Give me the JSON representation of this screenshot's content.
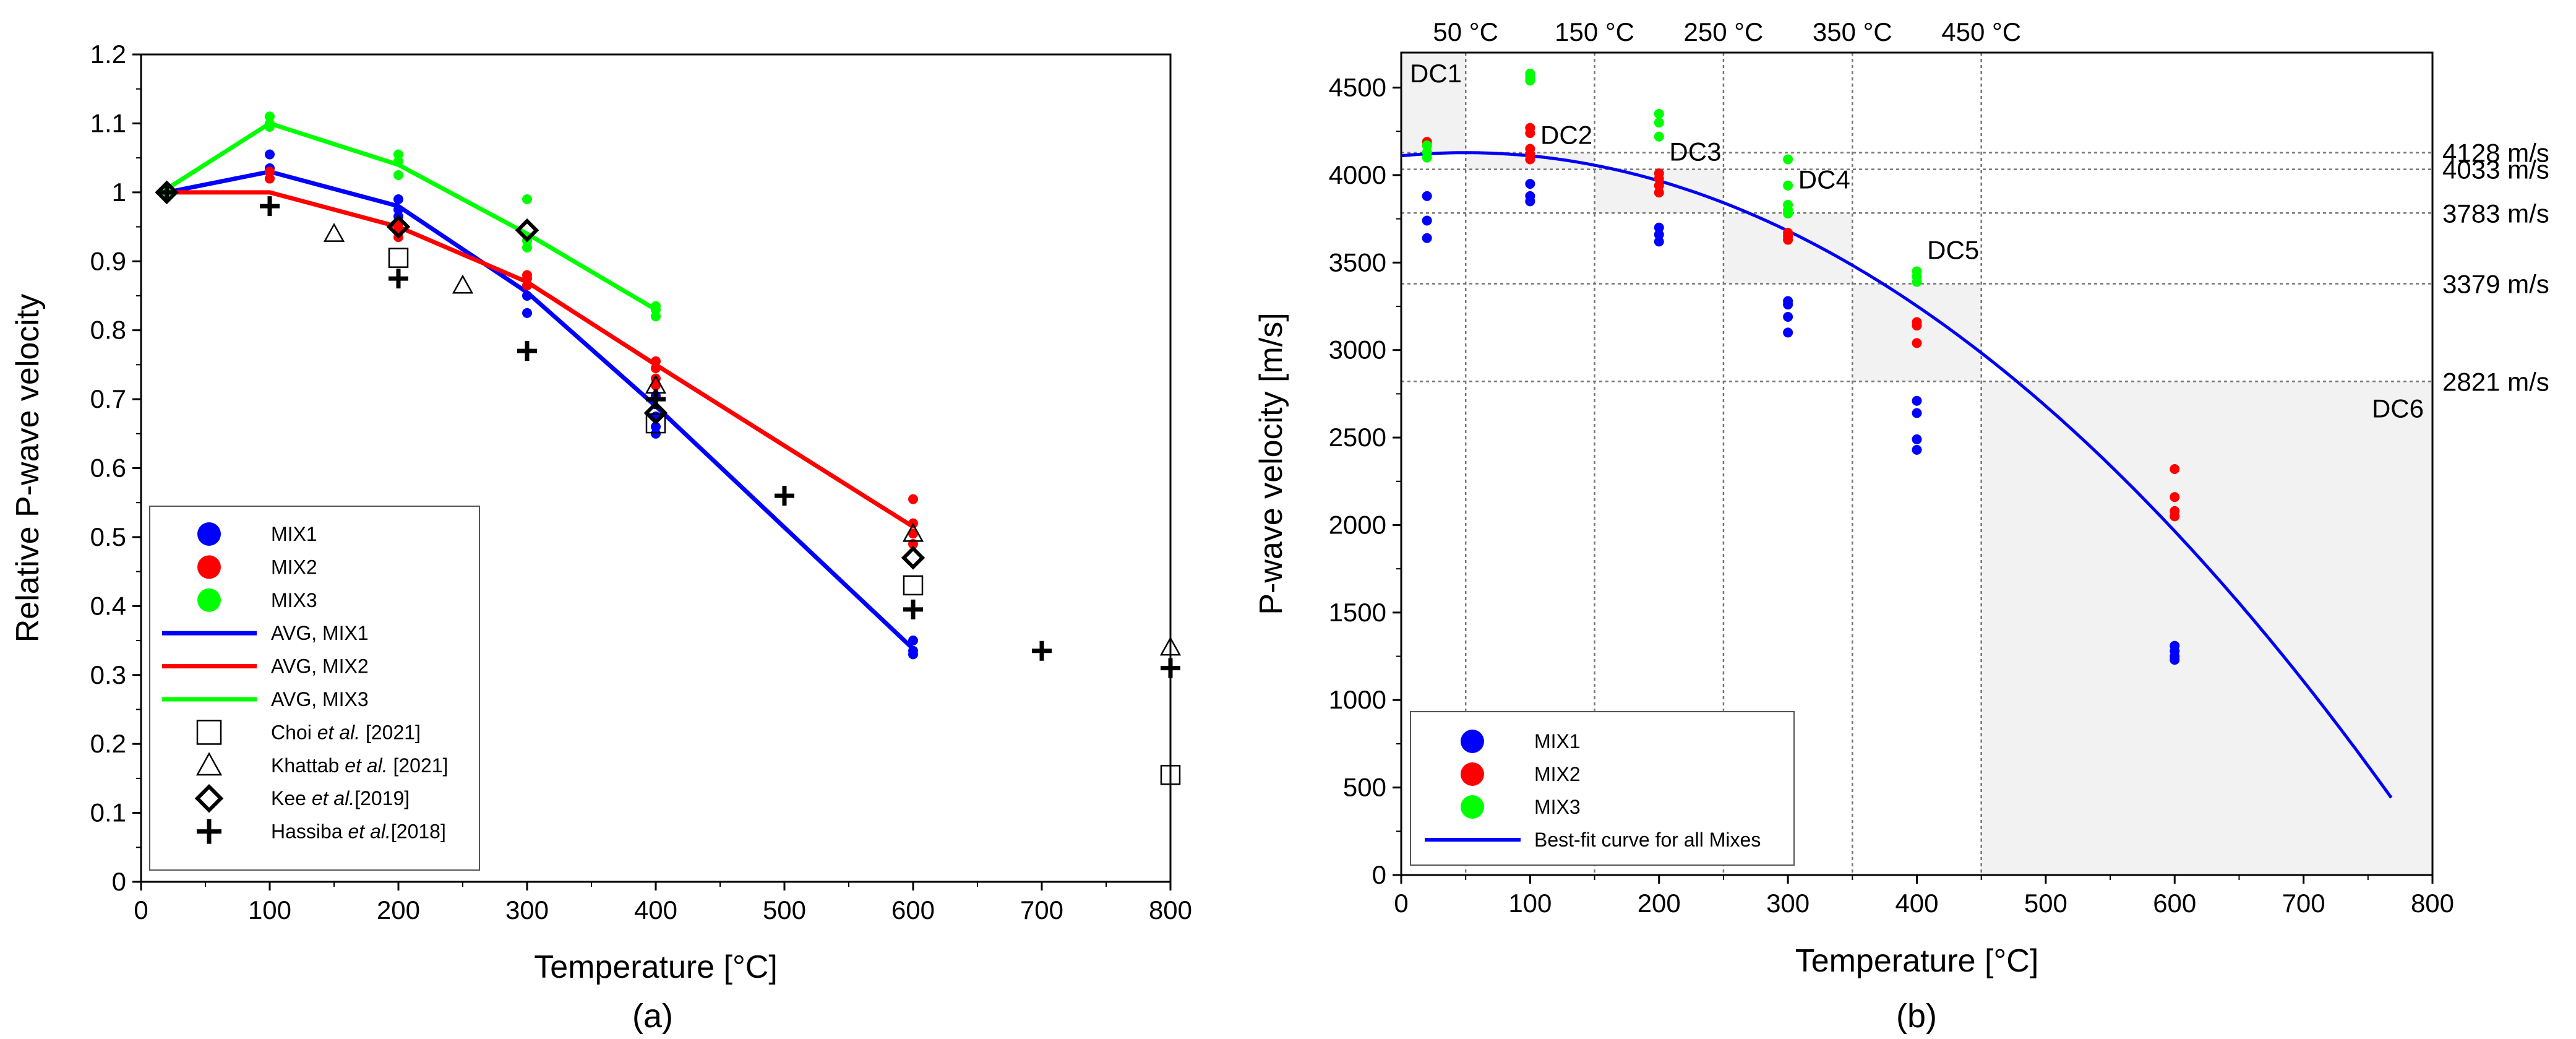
{
  "figure": {
    "caption_a": "(a)",
    "caption_b": "(b)"
  },
  "chart_data": [
    {
      "type": "scatter",
      "title": "",
      "xlabel": "Temperature [°C]",
      "ylabel": "Relative P-wave velocity",
      "xlim": [
        0,
        800
      ],
      "ylim": [
        0,
        1.2
      ],
      "xticks": [
        "0",
        "100",
        "200",
        "300",
        "400",
        "500",
        "600",
        "700",
        "800"
      ],
      "yticks": [
        "0",
        "0.1",
        "0.2",
        "0.3",
        "0.4",
        "0.5",
        "0.6",
        "0.7",
        "0.8",
        "0.9",
        "1",
        "1.1",
        "1.2"
      ],
      "legend_position": "bottom-left",
      "series": [
        {
          "name": "MIX1",
          "kind": "points",
          "color": "#0000ff",
          "points": [
            [
              20,
              1.0
            ],
            [
              100,
              1.055
            ],
            [
              100,
              1.035
            ],
            [
              100,
              1.02
            ],
            [
              200,
              0.99
            ],
            [
              200,
              0.975
            ],
            [
              200,
              0.965
            ],
            [
              200,
              0.955
            ],
            [
              300,
              0.865
            ],
            [
              300,
              0.85
            ],
            [
              300,
              0.825
            ],
            [
              400,
              0.705
            ],
            [
              400,
              0.675
            ],
            [
              400,
              0.66
            ],
            [
              400,
              0.65
            ],
            [
              600,
              0.35
            ],
            [
              600,
              0.335
            ],
            [
              600,
              0.33
            ]
          ]
        },
        {
          "name": "MIX2",
          "kind": "points",
          "color": "#ff0000",
          "points": [
            [
              20,
              1.0
            ],
            [
              100,
              1.03
            ],
            [
              100,
              1.02
            ],
            [
              200,
              0.955
            ],
            [
              200,
              0.945
            ],
            [
              200,
              0.935
            ],
            [
              300,
              0.88
            ],
            [
              300,
              0.875
            ],
            [
              300,
              0.865
            ],
            [
              400,
              0.755
            ],
            [
              400,
              0.745
            ],
            [
              400,
              0.73
            ],
            [
              400,
              0.72
            ],
            [
              600,
              0.555
            ],
            [
              600,
              0.52
            ],
            [
              600,
              0.505
            ],
            [
              600,
              0.49
            ]
          ]
        },
        {
          "name": "MIX3",
          "kind": "points",
          "color": "#00ff00",
          "points": [
            [
              20,
              1.0
            ],
            [
              100,
              1.11
            ],
            [
              100,
              1.1
            ],
            [
              100,
              1.095
            ],
            [
              200,
              1.055
            ],
            [
              200,
              1.045
            ],
            [
              200,
              1.025
            ],
            [
              300,
              0.99
            ],
            [
              300,
              0.93
            ],
            [
              300,
              0.92
            ],
            [
              400,
              0.835
            ],
            [
              400,
              0.83
            ],
            [
              400,
              0.82
            ]
          ]
        },
        {
          "name": "AVG, MIX1",
          "kind": "line",
          "color": "#0000ff",
          "points": [
            [
              20,
              1.0
            ],
            [
              100,
              1.03
            ],
            [
              200,
              0.98
            ],
            [
              300,
              0.855
            ],
            [
              400,
              0.69
            ],
            [
              600,
              0.338
            ]
          ]
        },
        {
          "name": "AVG, MIX2",
          "kind": "line",
          "color": "#ff0000",
          "points": [
            [
              20,
              1.0
            ],
            [
              100,
              1.0
            ],
            [
              200,
              0.95
            ],
            [
              300,
              0.87
            ],
            [
              400,
              0.75
            ],
            [
              600,
              0.515
            ]
          ]
        },
        {
          "name": "AVG, MIX3",
          "kind": "line",
          "color": "#00ff00",
          "points": [
            [
              20,
              1.005
            ],
            [
              100,
              1.1
            ],
            [
              200,
              1.04
            ],
            [
              300,
              0.94
            ],
            [
              400,
              0.83
            ]
          ]
        },
        {
          "name": "Choi et al. [2021]",
          "kind": "square",
          "color": "#000000",
          "points": [
            [
              200,
              0.905
            ],
            [
              400,
              0.665
            ],
            [
              600,
              0.43
            ],
            [
              800,
              0.155
            ]
          ]
        },
        {
          "name": "Khattab et al. [2021]",
          "kind": "triangle",
          "color": "#000000",
          "points": [
            [
              150,
              0.94
            ],
            [
              250,
              0.865
            ],
            [
              400,
              0.72
            ],
            [
              600,
              0.505
            ],
            [
              800,
              0.34
            ]
          ]
        },
        {
          "name": "Kee et al.[2019]",
          "kind": "diamond",
          "color": "#000000",
          "points": [
            [
              20,
              1.0
            ],
            [
              200,
              0.95
            ],
            [
              300,
              0.945
            ],
            [
              400,
              0.68
            ],
            [
              600,
              0.47
            ]
          ]
        },
        {
          "name": "Hassiba et al.[2018]",
          "kind": "plus",
          "color": "#000000",
          "points": [
            [
              20,
              1.0
            ],
            [
              100,
              0.98
            ],
            [
              200,
              0.875
            ],
            [
              300,
              0.77
            ],
            [
              400,
              0.7
            ],
            [
              500,
              0.56
            ],
            [
              600,
              0.395
            ],
            [
              700,
              0.335
            ],
            [
              800,
              0.31
            ]
          ]
        }
      ],
      "legend": [
        {
          "name": "MIX1",
          "text": "MIX1"
        },
        {
          "name": "MIX2",
          "text": "MIX2"
        },
        {
          "name": "MIX3",
          "text": "MIX3"
        },
        {
          "name": "AVG, MIX1",
          "text": "AVG, MIX1"
        },
        {
          "name": "AVG, MIX2",
          "text": "AVG, MIX2"
        },
        {
          "name": "AVG, MIX3",
          "text": "AVG, MIX3"
        },
        {
          "name": "Choi et al. [2021]",
          "pre": "Choi ",
          "em": "et al.",
          "post": " [2021]"
        },
        {
          "name": "Khattab et al. [2021]",
          "pre": "Khattab ",
          "em": "et al.",
          "post": " [2021]"
        },
        {
          "name": "Kee et al.[2019]",
          "pre": "Kee ",
          "em": "et al.",
          "post": "[2019]"
        },
        {
          "name": "Hassiba et al.[2018]",
          "pre": "Hassiba ",
          "em": "et al.",
          "post": "[2018]"
        }
      ]
    },
    {
      "type": "scatter",
      "title": "",
      "xlabel": "Temperature [°C]",
      "ylabel": "P-wave velocity [m/s]",
      "xlim": [
        0,
        800
      ],
      "ylim": [
        0,
        4700
      ],
      "xticks": [
        "0",
        "100",
        "200",
        "300",
        "400",
        "500",
        "600",
        "700",
        "800"
      ],
      "yticks": [
        "0",
        "500",
        "1000",
        "1500",
        "2000",
        "2500",
        "3000",
        "3500",
        "4000",
        "4500"
      ],
      "legend_position": "bottom-left",
      "top_temperature_labels": [
        {
          "x": 50,
          "text": "50 °C"
        },
        {
          "x": 150,
          "text": "150 °C"
        },
        {
          "x": 250,
          "text": "250 °C"
        },
        {
          "x": 350,
          "text": "350 °C"
        },
        {
          "x": 450,
          "text": "450 °C"
        }
      ],
      "velocity_thresholds": [
        {
          "y": 4128,
          "text": "4128 m/s"
        },
        {
          "y": 4033,
          "text": "4033 m/s"
        },
        {
          "y": 3783,
          "text": "3783 m/s"
        },
        {
          "y": 3379,
          "text": "3379 m/s"
        },
        {
          "y": 2821,
          "text": "2821 m/s"
        }
      ],
      "damage_classes": [
        {
          "label": "DC1",
          "x_range": [
            0,
            50
          ],
          "y_range": [
            4128,
            4700
          ]
        },
        {
          "label": "DC2",
          "x_range": [
            50,
            150
          ],
          "y_range": [
            4033,
            4128
          ]
        },
        {
          "label": "DC3",
          "x_range": [
            150,
            250
          ],
          "y_range": [
            3783,
            4033
          ]
        },
        {
          "label": "DC4",
          "x_range": [
            250,
            350
          ],
          "y_range": [
            3379,
            3783
          ]
        },
        {
          "label": "DC5",
          "x_range": [
            350,
            450
          ],
          "y_range": [
            2821,
            3379
          ]
        },
        {
          "label": "DC6",
          "x_range": [
            450,
            800
          ],
          "y_range": [
            0,
            2821
          ]
        }
      ],
      "series": [
        {
          "name": "MIX1",
          "kind": "points",
          "color": "#0000ff",
          "points": [
            [
              20,
              3880
            ],
            [
              20,
              3740
            ],
            [
              20,
              3640
            ],
            [
              100,
              3950
            ],
            [
              100,
              3880
            ],
            [
              100,
              3850
            ],
            [
              200,
              3700
            ],
            [
              200,
              3660
            ],
            [
              200,
              3620
            ],
            [
              300,
              3280
            ],
            [
              300,
              3260
            ],
            [
              300,
              3190
            ],
            [
              300,
              3100
            ],
            [
              400,
              2710
            ],
            [
              400,
              2640
            ],
            [
              400,
              2490
            ],
            [
              400,
              2430
            ],
            [
              600,
              1310
            ],
            [
              600,
              1280
            ],
            [
              600,
              1250
            ],
            [
              600,
              1230
            ]
          ]
        },
        {
          "name": "MIX2",
          "kind": "points",
          "color": "#ff0000",
          "points": [
            [
              20,
              4190
            ],
            [
              20,
              4170
            ],
            [
              100,
              4270
            ],
            [
              100,
              4240
            ],
            [
              100,
              4150
            ],
            [
              100,
              4120
            ],
            [
              100,
              4090
            ],
            [
              200,
              4010
            ],
            [
              200,
              3980
            ],
            [
              200,
              3940
            ],
            [
              200,
              3900
            ],
            [
              300,
              3670
            ],
            [
              300,
              3650
            ],
            [
              300,
              3630
            ],
            [
              400,
              3160
            ],
            [
              400,
              3140
            ],
            [
              400,
              3040
            ],
            [
              600,
              2320
            ],
            [
              600,
              2160
            ],
            [
              600,
              2080
            ],
            [
              600,
              2050
            ]
          ]
        },
        {
          "name": "MIX3",
          "kind": "points",
          "color": "#00ff00",
          "points": [
            [
              20,
              4170
            ],
            [
              20,
              4130
            ],
            [
              20,
              4100
            ],
            [
              100,
              4580
            ],
            [
              100,
              4560
            ],
            [
              100,
              4540
            ],
            [
              200,
              4350
            ],
            [
              200,
              4300
            ],
            [
              200,
              4220
            ],
            [
              300,
              4090
            ],
            [
              300,
              3940
            ],
            [
              300,
              3830
            ],
            [
              300,
              3800
            ],
            [
              300,
              3780
            ],
            [
              400,
              3450
            ],
            [
              400,
              3420
            ],
            [
              400,
              3390
            ]
          ]
        },
        {
          "name": "Best-fit curve for all Mixes",
          "kind": "curve",
          "color": "#0000ff",
          "model": "y = 4128 - 0.00715*(x-50)^2 (x<=50 uses 4128 - 0.00715*(50-x)^2)",
          "x_range": [
            0,
            770
          ]
        }
      ],
      "legend": [
        {
          "name": "MIX1",
          "text": "MIX1"
        },
        {
          "name": "MIX2",
          "text": "MIX2"
        },
        {
          "name": "MIX3",
          "text": "MIX3"
        },
        {
          "name": "Best-fit",
          "text": "Best-fit curve for all Mixes"
        }
      ]
    }
  ]
}
